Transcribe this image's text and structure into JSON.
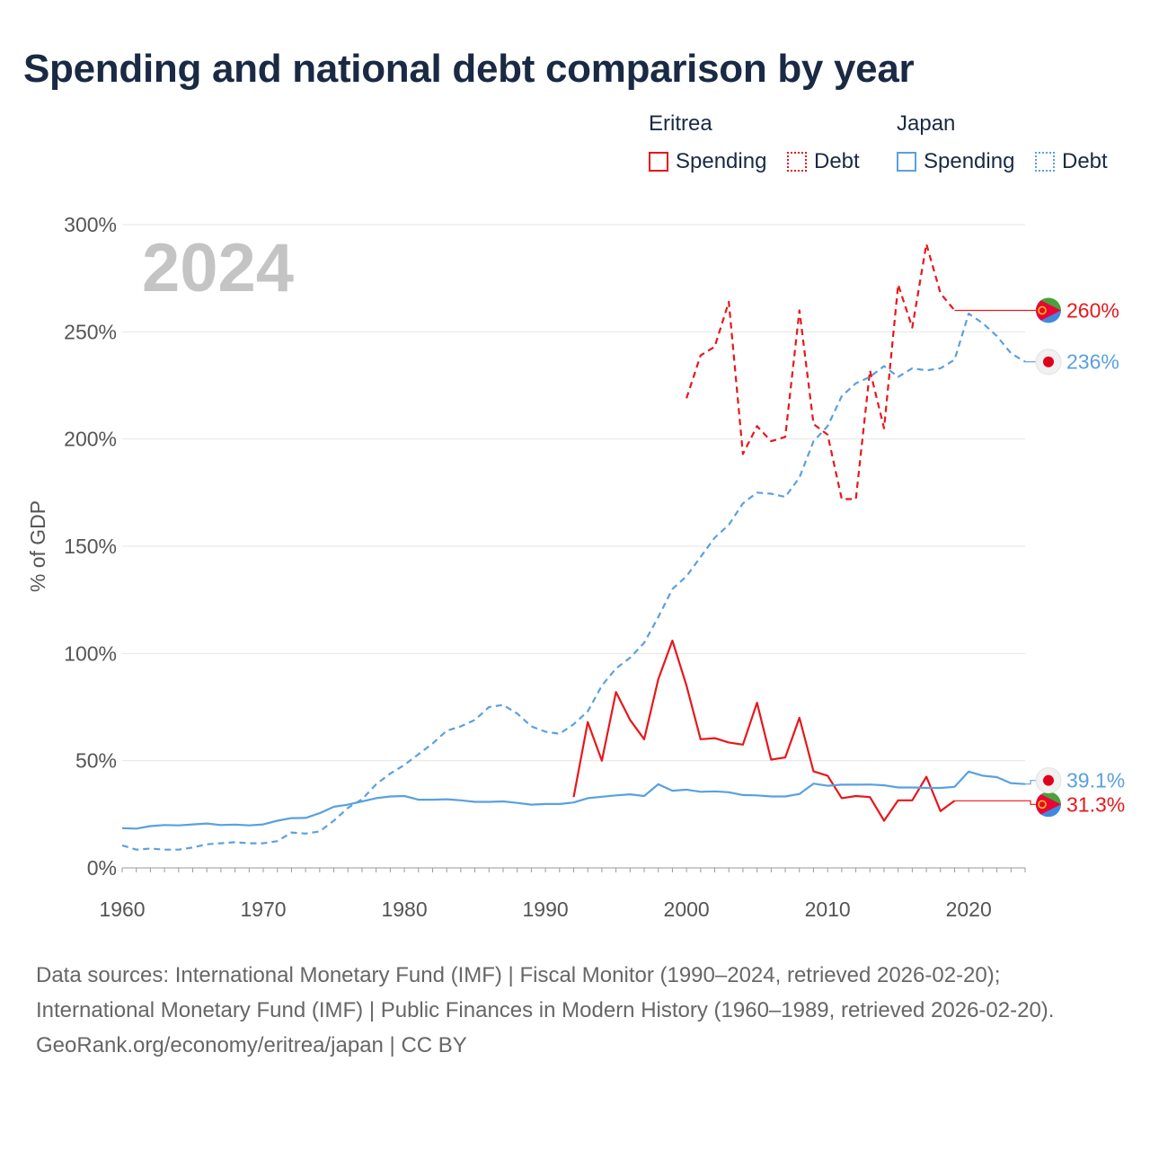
{
  "title": "Spending and national debt comparison by year",
  "legend": {
    "groups": [
      {
        "country": "Eritrea",
        "color": "#e8171b",
        "items": [
          {
            "label": "Spending",
            "style": "solid"
          },
          {
            "label": "Debt",
            "style": "dashed"
          }
        ]
      },
      {
        "country": "Japan",
        "color": "#5aa0e0",
        "items": [
          {
            "label": "Spending",
            "style": "solid"
          },
          {
            "label": "Debt",
            "style": "dashed"
          }
        ]
      }
    ]
  },
  "chart_data": {
    "type": "line",
    "title": "Spending and national debt comparison by year",
    "ylabel": "% of GDP",
    "xlabel": "",
    "year_label": "2024",
    "xlim": [
      1960,
      2024
    ],
    "ylim": [
      0,
      300
    ],
    "x_ticks": [
      1960,
      1970,
      1980,
      1990,
      2000,
      2010,
      2020
    ],
    "y_ticks": [
      0,
      50,
      100,
      150,
      200,
      250,
      300
    ],
    "y_tick_labels": [
      "0%",
      "50%",
      "100%",
      "150%",
      "200%",
      "250%",
      "300%"
    ],
    "grid": true,
    "series": [
      {
        "name": "Eritrea Spending",
        "country": "Eritrea",
        "measure": "Spending",
        "color": "#e8171b",
        "dashed": false,
        "end_label": "31.3%",
        "end_value": 31.3,
        "flag": "eritrea",
        "points": [
          [
            1992,
            33
          ],
          [
            1993,
            68
          ],
          [
            1994,
            50
          ],
          [
            1995,
            82
          ],
          [
            1996,
            69
          ],
          [
            1997,
            60
          ],
          [
            1998,
            88
          ],
          [
            1999,
            106
          ],
          [
            2000,
            85
          ],
          [
            2001,
            60
          ],
          [
            2002,
            60.5
          ],
          [
            2003,
            58.5
          ],
          [
            2004,
            57.5
          ],
          [
            2005,
            77
          ],
          [
            2006,
            50.5
          ],
          [
            2007,
            51.5
          ],
          [
            2008,
            70
          ],
          [
            2009,
            45
          ],
          [
            2010,
            43
          ],
          [
            2011,
            32.5
          ],
          [
            2012,
            33.5
          ],
          [
            2013,
            33
          ],
          [
            2014,
            22
          ],
          [
            2015,
            31.5
          ],
          [
            2016,
            31.5
          ],
          [
            2017,
            42.5
          ],
          [
            2018,
            26.5
          ],
          [
            2019,
            31.3
          ]
        ]
      },
      {
        "name": "Eritrea Debt",
        "country": "Eritrea",
        "measure": "Debt",
        "color": "#e8171b",
        "dashed": true,
        "end_label": "260%",
        "end_value": 260,
        "flag": "eritrea",
        "points": [
          [
            2000,
            219
          ],
          [
            2001,
            239
          ],
          [
            2002,
            243
          ],
          [
            2003,
            264
          ],
          [
            2004,
            193
          ],
          [
            2005,
            206
          ],
          [
            2006,
            199
          ],
          [
            2007,
            201
          ],
          [
            2008,
            260
          ],
          [
            2009,
            207
          ],
          [
            2010,
            202
          ],
          [
            2011,
            172
          ],
          [
            2012,
            172
          ],
          [
            2013,
            232
          ],
          [
            2014,
            205
          ],
          [
            2015,
            272
          ],
          [
            2016,
            252
          ],
          [
            2017,
            291
          ],
          [
            2018,
            268
          ],
          [
            2019,
            260
          ]
        ]
      },
      {
        "name": "Japan Spending",
        "country": "Japan",
        "measure": "Spending",
        "color": "#5aa0e0",
        "dashed": false,
        "end_label": "39.1%",
        "end_value": 39.1,
        "flag": "japan",
        "points": [
          [
            1960,
            18.5
          ],
          [
            1961,
            18.3
          ],
          [
            1962,
            19.5
          ],
          [
            1963,
            20
          ],
          [
            1964,
            19.8
          ],
          [
            1965,
            20.3
          ],
          [
            1966,
            20.7
          ],
          [
            1967,
            20
          ],
          [
            1968,
            20.2
          ],
          [
            1969,
            19.8
          ],
          [
            1970,
            20.3
          ],
          [
            1971,
            22
          ],
          [
            1972,
            23.2
          ],
          [
            1973,
            23.3
          ],
          [
            1974,
            25.5
          ],
          [
            1975,
            28.5
          ],
          [
            1976,
            29.5
          ],
          [
            1977,
            31
          ],
          [
            1978,
            32.5
          ],
          [
            1979,
            33.3
          ],
          [
            1980,
            33.5
          ],
          [
            1981,
            31.8
          ],
          [
            1982,
            31.8
          ],
          [
            1983,
            32
          ],
          [
            1984,
            31.5
          ],
          [
            1985,
            30.8
          ],
          [
            1986,
            30.8
          ],
          [
            1987,
            31
          ],
          [
            1988,
            30.3
          ],
          [
            1989,
            29.5
          ],
          [
            1990,
            29.8
          ],
          [
            1991,
            29.8
          ],
          [
            1992,
            30.5
          ],
          [
            1993,
            32.5
          ],
          [
            1994,
            33.2
          ],
          [
            1995,
            33.8
          ],
          [
            1996,
            34.3
          ],
          [
            1997,
            33.5
          ],
          [
            1998,
            39
          ],
          [
            1999,
            36
          ],
          [
            2000,
            36.5
          ],
          [
            2001,
            35.5
          ],
          [
            2002,
            35.7
          ],
          [
            2003,
            35.3
          ],
          [
            2004,
            34
          ],
          [
            2005,
            33.8
          ],
          [
            2006,
            33.3
          ],
          [
            2007,
            33.3
          ],
          [
            2008,
            34.5
          ],
          [
            2009,
            39.3
          ],
          [
            2010,
            38.3
          ],
          [
            2011,
            38.8
          ],
          [
            2012,
            38.8
          ],
          [
            2013,
            38.9
          ],
          [
            2014,
            38.5
          ],
          [
            2015,
            37.5
          ],
          [
            2016,
            37.5
          ],
          [
            2017,
            37.3
          ],
          [
            2018,
            37.3
          ],
          [
            2019,
            37.8
          ],
          [
            2020,
            44.9
          ],
          [
            2021,
            43
          ],
          [
            2022,
            42.3
          ],
          [
            2023,
            39.5
          ],
          [
            2024,
            39.1
          ]
        ]
      },
      {
        "name": "Japan Debt",
        "country": "Japan",
        "measure": "Debt",
        "color": "#5aa0e0",
        "dashed": true,
        "end_label": "236%",
        "end_value": 236,
        "flag": "japan",
        "points": [
          [
            1960,
            10.5
          ],
          [
            1961,
            8.5
          ],
          [
            1962,
            9
          ],
          [
            1963,
            8.5
          ],
          [
            1964,
            8.5
          ],
          [
            1965,
            9.5
          ],
          [
            1966,
            11
          ],
          [
            1967,
            11.5
          ],
          [
            1968,
            12
          ],
          [
            1969,
            11.5
          ],
          [
            1970,
            11.5
          ],
          [
            1971,
            12.5
          ],
          [
            1972,
            16.5
          ],
          [
            1973,
            16
          ],
          [
            1974,
            17
          ],
          [
            1975,
            22
          ],
          [
            1976,
            28
          ],
          [
            1977,
            32
          ],
          [
            1978,
            39
          ],
          [
            1979,
            44
          ],
          [
            1980,
            48
          ],
          [
            1981,
            53
          ],
          [
            1982,
            58
          ],
          [
            1983,
            64
          ],
          [
            1984,
            66
          ],
          [
            1985,
            69
          ],
          [
            1986,
            75
          ],
          [
            1987,
            76
          ],
          [
            1988,
            72
          ],
          [
            1989,
            66
          ],
          [
            1990,
            63.5
          ],
          [
            1991,
            62.5
          ],
          [
            1992,
            67
          ],
          [
            1993,
            73
          ],
          [
            1994,
            85
          ],
          [
            1995,
            93
          ],
          [
            1996,
            98
          ],
          [
            1997,
            105
          ],
          [
            1998,
            117
          ],
          [
            1999,
            130
          ],
          [
            2000,
            136
          ],
          [
            2001,
            145
          ],
          [
            2002,
            154
          ],
          [
            2003,
            160
          ],
          [
            2004,
            170
          ],
          [
            2005,
            175
          ],
          [
            2006,
            174.5
          ],
          [
            2007,
            173
          ],
          [
            2008,
            182
          ],
          [
            2009,
            199
          ],
          [
            2010,
            206
          ],
          [
            2011,
            220
          ],
          [
            2012,
            226
          ],
          [
            2013,
            229
          ],
          [
            2014,
            234
          ],
          [
            2015,
            229
          ],
          [
            2016,
            233
          ],
          [
            2017,
            232
          ],
          [
            2018,
            233
          ],
          [
            2019,
            237
          ],
          [
            2020,
            258.5
          ],
          [
            2021,
            254
          ],
          [
            2022,
            248
          ],
          [
            2023,
            240
          ],
          [
            2024,
            236
          ]
        ]
      }
    ]
  },
  "footer": {
    "sources": "Data sources: International Monetary Fund (IMF) | Fiscal Monitor (1990–2024, retrieved 2026-02-20); International Monetary Fund (IMF) | Public Finances in Modern History (1960–1989, retrieved 2026-02-20).",
    "attribution": "GeoRank.org/economy/eritrea/japan | CC BY"
  }
}
